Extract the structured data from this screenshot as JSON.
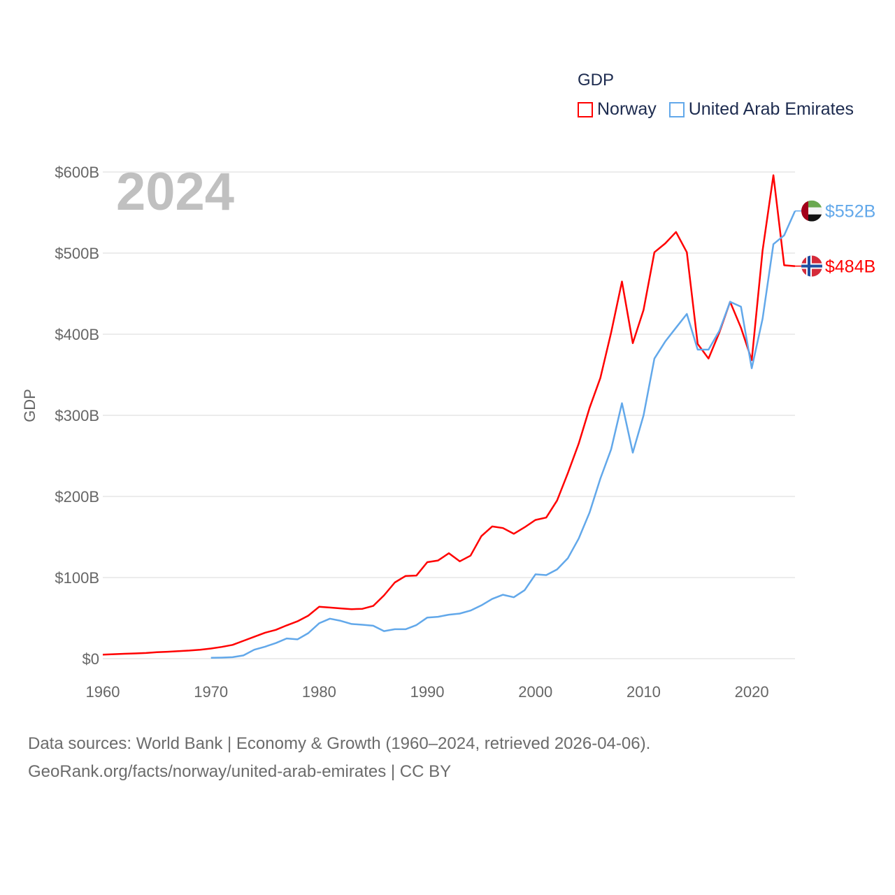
{
  "chart_data": {
    "type": "line",
    "title": "GDP",
    "year_label": "2024",
    "ylabel": "GDP",
    "xlabel": "",
    "xlim": [
      1960,
      2024
    ],
    "ylim": [
      0,
      600
    ],
    "x_ticks": [
      1960,
      1970,
      1980,
      1990,
      2000,
      2010,
      2020
    ],
    "x_tick_labels": [
      "1960",
      "1970",
      "1980",
      "1990",
      "2000",
      "2010",
      "2020"
    ],
    "y_ticks": [
      0,
      100,
      200,
      300,
      400,
      500,
      600
    ],
    "y_tick_labels": [
      "$0",
      "$100B",
      "$200B",
      "$300B",
      "$400B",
      "$500B",
      "$600B"
    ],
    "grid": true,
    "legend_placement": "top-right",
    "units": "billions USD",
    "series": [
      {
        "name": "Norway",
        "color": "#ff0000",
        "flag": "norway-flag",
        "end_label": "$484B",
        "start_year": 1960,
        "values": [
          5,
          5.5,
          6,
          6.5,
          7,
          8,
          8.5,
          9.3,
          10,
          11,
          12.5,
          14.5,
          17,
          22,
          27,
          32,
          35.5,
          41,
          46,
          53,
          64,
          63,
          62,
          61,
          61.5,
          65,
          78,
          94,
          102,
          102.5,
          119,
          121,
          130,
          120,
          127,
          151,
          163,
          161,
          154,
          162,
          171,
          174,
          195,
          229,
          265,
          309,
          346,
          402,
          465,
          389,
          430,
          501,
          512,
          526,
          501,
          388,
          370,
          402,
          440,
          408,
          368,
          503,
          596,
          485,
          484
        ]
      },
      {
        "name": "United Arab Emirates",
        "color": "#62a8ea",
        "flag": "uae-flag",
        "end_label": "$552B",
        "start_year": 1970,
        "values": [
          1,
          1.3,
          1.8,
          4,
          11,
          14.7,
          19.2,
          24.9,
          23.8,
          31.5,
          43.6,
          49.3,
          46.6,
          42.8,
          41.8,
          40.6,
          34,
          36.3,
          36.3,
          41.5,
          50.7,
          51.6,
          54.2,
          55.6,
          59.3,
          65.7,
          73.6,
          78.8,
          75.7,
          84.4,
          104,
          103,
          110,
          124,
          148,
          180,
          222,
          258,
          315,
          254,
          300,
          370,
          391,
          408,
          425,
          381,
          381,
          404,
          440,
          434,
          358,
          419,
          511,
          522,
          552
        ]
      }
    ]
  },
  "source": {
    "line1": "Data sources: World Bank | Economy & Growth (1960–2024, retrieved 2026-04-06).",
    "line2": "GeoRank.org/facts/norway/united-arab-emirates | CC BY"
  }
}
